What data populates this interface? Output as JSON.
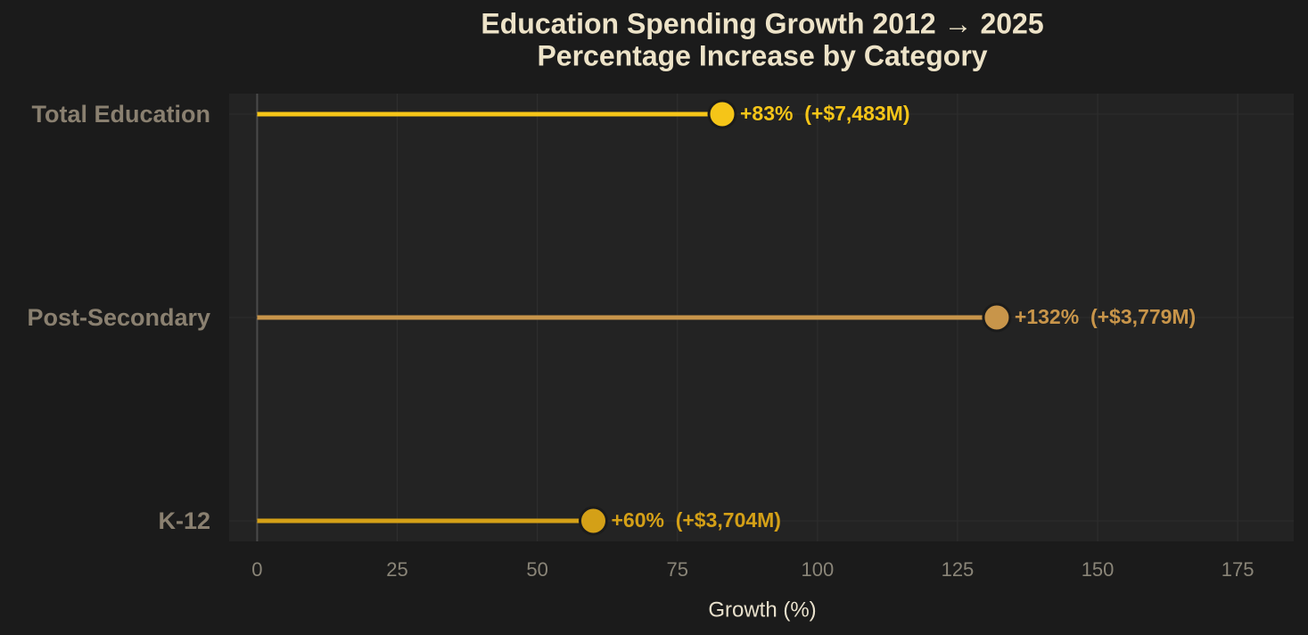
{
  "chart_data": {
    "type": "lollipop",
    "title": "Education Spending Growth 2012 → 2025",
    "subtitle": "Percentage Increase by Category",
    "x_label": "Growth (%)",
    "categories": [
      "Total Education",
      "Post-Secondary",
      "K-12"
    ],
    "values": [
      83,
      132,
      60
    ],
    "value_labels": [
      "+83%  (+$7,483M)",
      "+132%  (+$3,779M)",
      "+60%  (+$3,704M)"
    ],
    "colors": [
      "#f5c518",
      "#c8954a",
      "#d4a017"
    ],
    "xlim": [
      -5,
      185
    ],
    "xticks": [
      0,
      25,
      50,
      75,
      100,
      125,
      150,
      175
    ],
    "grid": true
  }
}
